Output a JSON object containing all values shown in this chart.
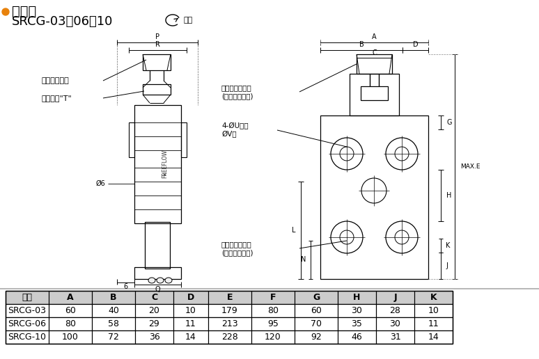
{
  "title": "尺寸图",
  "subtitle": "SRCG-03、06、10",
  "increase_label": "增加",
  "background_color": "#ffffff",
  "table_headers": [
    "型号",
    "A",
    "B",
    "C",
    "D",
    "E",
    "F",
    "G",
    "H",
    "J",
    "K"
  ],
  "table_rows": [
    [
      "SRCG-03",
      "60",
      "40",
      "20",
      "10",
      "179",
      "80",
      "60",
      "30",
      "28",
      "10"
    ],
    [
      "SRCG-06",
      "80",
      "58",
      "29",
      "11",
      "213",
      "95",
      "70",
      "35",
      "30",
      "11"
    ],
    [
      "SRCG-10",
      "100",
      "72",
      "36",
      "14",
      "228",
      "120",
      "92",
      "46",
      "31",
      "14"
    ]
  ],
  "line_color": "#000000",
  "table_header_bg": "#cccccc",
  "font_size_title": 14,
  "font_size_subtitle": 13,
  "font_size_table": 9,
  "font_size_label": 8
}
